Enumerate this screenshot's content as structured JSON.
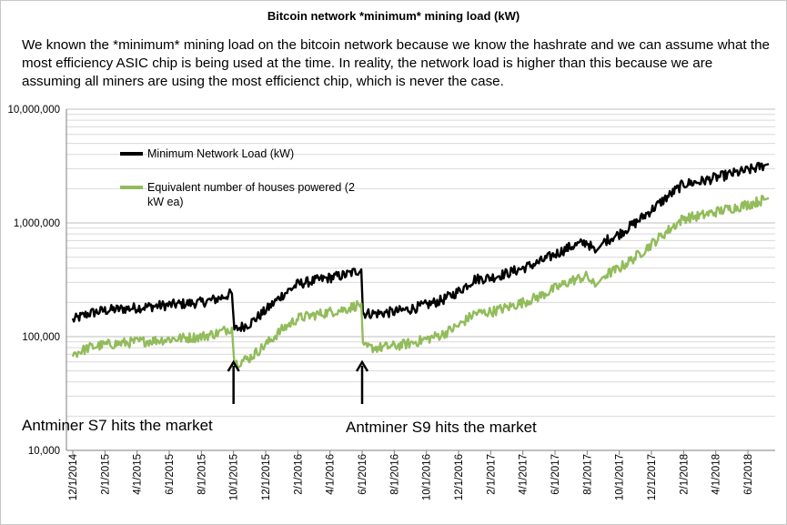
{
  "chart_data": {
    "type": "line",
    "title": "Bitcoin network *minimum* mining load (kW)",
    "description": "We known the *minimum* mining load on the bitcoin network because we know the hashrate and we can assume what the most efficiency ASIC chip is being used at the time. In reality, the network load is higher than this because we are assuming all miners are using the most efficienct chip, which is never the case.",
    "y_scale": "log",
    "ylim": [
      10000,
      10000000
    ],
    "y_tick_values": [
      10000,
      100000,
      1000000,
      10000000
    ],
    "y_tick_labels": [
      "10,000",
      "100,000",
      "1,000,000",
      "10,000,000"
    ],
    "x_range_months": [
      0,
      43.3
    ],
    "x_tick_labels": [
      "12/1/2014",
      "2/1/2015",
      "4/1/2015",
      "6/1/2015",
      "8/1/2015",
      "10/1/2015",
      "12/1/2015",
      "2/1/2016",
      "4/1/2016",
      "6/1/2016",
      "8/1/2016",
      "10/1/2016",
      "12/1/2016",
      "2/1/2017",
      "4/1/2017",
      "6/1/2017",
      "8/1/2017",
      "10/1/2017",
      "12/1/2017",
      "2/1/2018",
      "4/1/2018",
      "6/1/2018"
    ],
    "x_tick_months": [
      0,
      2,
      4,
      6,
      8,
      10,
      12,
      14,
      16,
      18,
      20,
      22,
      24,
      26,
      28,
      30,
      32,
      34,
      36,
      38,
      40,
      42
    ],
    "series": [
      {
        "name": "Minimum Network Load (kW)",
        "color": "#000000",
        "x": [
          0,
          1,
          2,
          3,
          4,
          5,
          6,
          7,
          8,
          9,
          9.9,
          10.05,
          11,
          12,
          13,
          14,
          15,
          16,
          17,
          17.95,
          18.05,
          19,
          20,
          21,
          22,
          23,
          24,
          25,
          26,
          27,
          28,
          29,
          30,
          31,
          32,
          32.5,
          32.8,
          33,
          34,
          35,
          36,
          37,
          38,
          39,
          40,
          41,
          42,
          43,
          43.3
        ],
        "values": [
          140000,
          160000,
          170000,
          175000,
          180000,
          185000,
          190000,
          195000,
          200000,
          215000,
          240000,
          115000,
          130000,
          170000,
          230000,
          290000,
          310000,
          330000,
          350000,
          390000,
          160000,
          160000,
          165000,
          175000,
          190000,
          210000,
          250000,
          320000,
          330000,
          360000,
          400000,
          450000,
          530000,
          620000,
          680000,
          550000,
          620000,
          680000,
          800000,
          1000000,
          1300000,
          1700000,
          2200000,
          2300000,
          2500000,
          2700000,
          2900000,
          3200000,
          3300000
        ]
      },
      {
        "name": "Equivalent number of houses powered (2 kW ea)",
        "color": "#92bc5b",
        "x": [
          0,
          1,
          2,
          3,
          4,
          5,
          6,
          7,
          8,
          9,
          9.9,
          10.05,
          11,
          12,
          13,
          14,
          15,
          16,
          17,
          17.95,
          18.05,
          19,
          20,
          21,
          22,
          23,
          24,
          25,
          26,
          27,
          28,
          29,
          30,
          31,
          32,
          32.5,
          32.8,
          33,
          34,
          35,
          36,
          37,
          38,
          39,
          40,
          41,
          42,
          43,
          43.3
        ],
        "values": [
          70000,
          80000,
          85000,
          87500,
          90000,
          92500,
          95000,
          97500,
          100000,
          107500,
          120000,
          57500,
          65000,
          85000,
          115000,
          145000,
          155000,
          165000,
          175000,
          195000,
          80000,
          80000,
          82500,
          87500,
          95000,
          105000,
          125000,
          160000,
          165000,
          180000,
          200000,
          225000,
          265000,
          310000,
          340000,
          275000,
          310000,
          340000,
          400000,
          500000,
          650000,
          850000,
          1100000,
          1150000,
          1250000,
          1350000,
          1450000,
          1600000,
          1650000
        ]
      }
    ],
    "legend": [
      "Minimum Network Load (kW)",
      "Equivalent number of houses powered (2 kW ea)"
    ],
    "legend_position": "upper-left",
    "annotations": [
      {
        "label": "Antminer S7 hits the market",
        "x_month": 10
      },
      {
        "label": "Antminer S9 hits the market",
        "x_month": 18
      }
    ],
    "grid": true,
    "xlabel": "",
    "ylabel": ""
  }
}
